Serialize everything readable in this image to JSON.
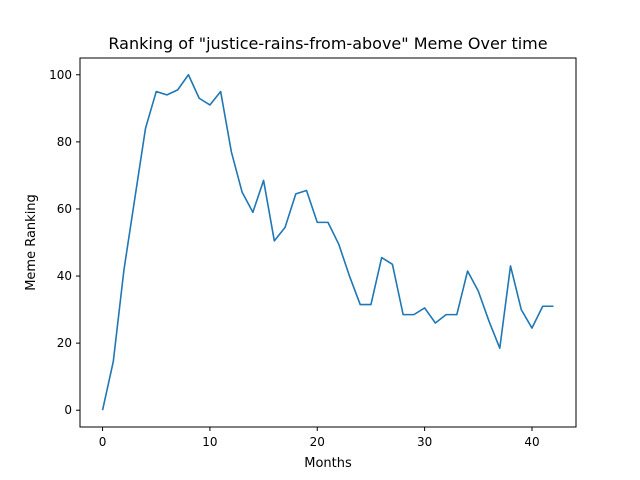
{
  "chart_data": {
    "type": "line",
    "title": "Ranking of \"justice-rains-from-above\" Meme Over time",
    "xlabel": "Months",
    "ylabel": "Meme Ranking",
    "xlim": [
      -2.1,
      44.1
    ],
    "ylim": [
      -5,
      105
    ],
    "xticks": [
      0,
      10,
      20,
      30,
      40
    ],
    "yticks": [
      0,
      20,
      40,
      60,
      80,
      100
    ],
    "grid": false,
    "legend": "none",
    "series": [
      {
        "color": "#1f77b4",
        "x": [
          0,
          1,
          2,
          3,
          4,
          5,
          6,
          7,
          8,
          9,
          10,
          11,
          12,
          13,
          14,
          15,
          16,
          17,
          18,
          19,
          20,
          21,
          22,
          23,
          24,
          25,
          26,
          27,
          28,
          29,
          30,
          31,
          32,
          33,
          34,
          35,
          36,
          37,
          38,
          39,
          40,
          41,
          42
        ],
        "values": [
          0,
          14.5,
          42,
          63,
          84,
          95,
          94,
          95.5,
          100,
          93,
          91,
          95,
          77,
          65,
          59,
          68.5,
          50.5,
          54.5,
          64.5,
          65.5,
          56,
          56,
          49.5,
          40,
          31.5,
          31.5,
          45.5,
          43.5,
          28.5,
          28.5,
          30.5,
          26,
          28.5,
          28.5,
          41.5,
          35.5,
          26.5,
          18.5,
          43,
          30,
          24.5,
          31,
          31
        ]
      }
    ]
  }
}
